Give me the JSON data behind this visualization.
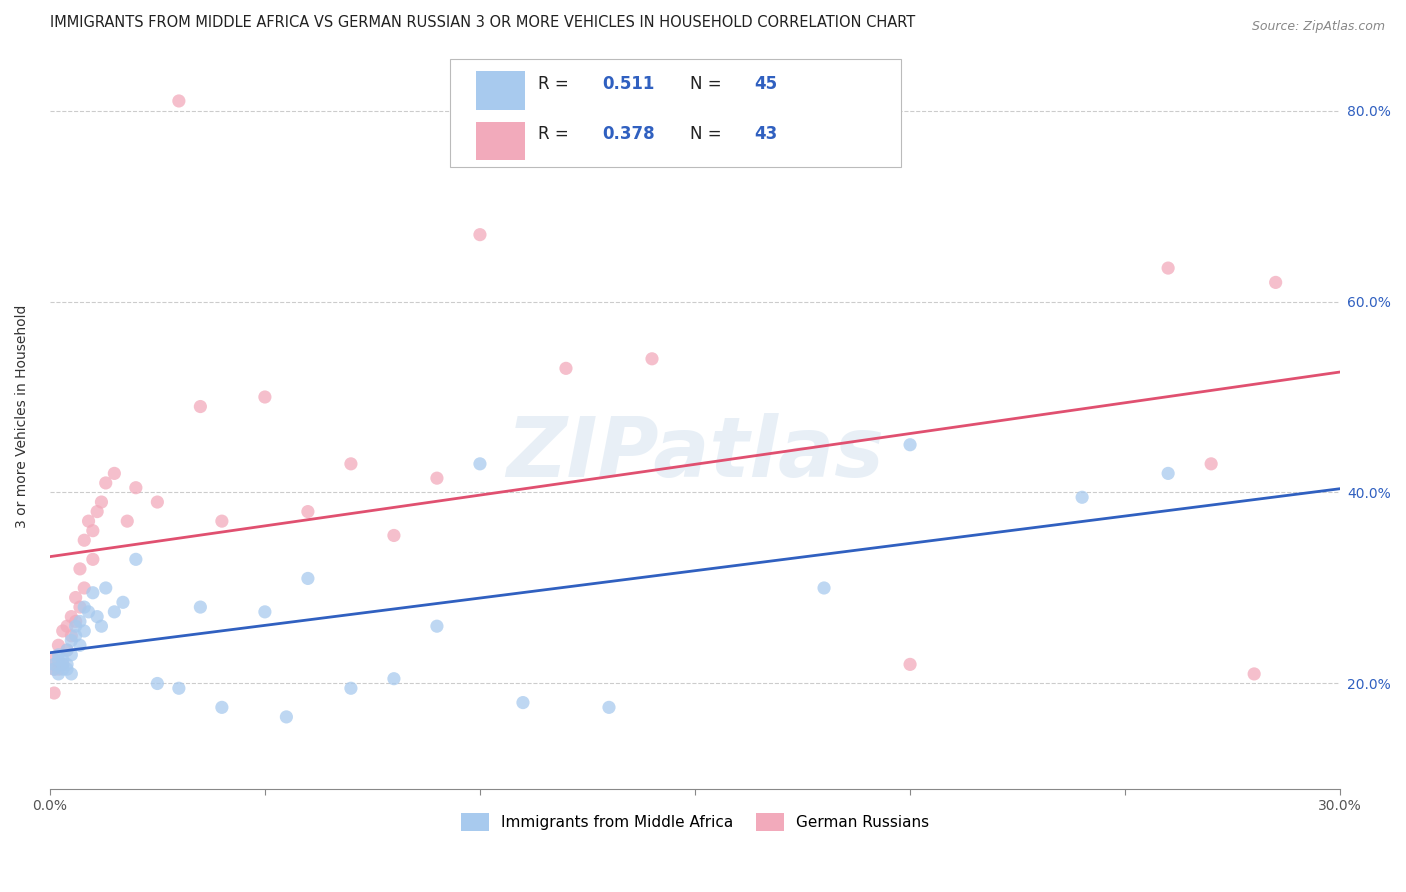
{
  "title": "IMMIGRANTS FROM MIDDLE AFRICA VS GERMAN RUSSIAN 3 OR MORE VEHICLES IN HOUSEHOLD CORRELATION CHART",
  "source": "Source: ZipAtlas.com",
  "ylabel": "3 or more Vehicles in Household",
  "xlim": [
    0.0,
    0.3
  ],
  "ylim": [
    0.09,
    0.87
  ],
  "xticks": [
    0.0,
    0.05,
    0.1,
    0.15,
    0.2,
    0.25,
    0.3
  ],
  "xticklabels": [
    "0.0%",
    "",
    "",
    "",
    "",
    "",
    "30.0%"
  ],
  "yticks": [
    0.2,
    0.4,
    0.6,
    0.8
  ],
  "yticklabels": [
    "20.0%",
    "40.0%",
    "60.0%",
    "80.0%"
  ],
  "blue_label": "Immigrants from Middle Africa",
  "pink_label": "German Russians",
  "blue_R": 0.511,
  "blue_N": 45,
  "pink_R": 0.378,
  "pink_N": 43,
  "blue_color": "#A8CAEE",
  "pink_color": "#F2AABB",
  "blue_line_color": "#3060C0",
  "pink_line_color": "#E05070",
  "watermark": "ZIPatlas",
  "blue_x": [
    0.001,
    0.001,
    0.002,
    0.002,
    0.002,
    0.003,
    0.003,
    0.003,
    0.004,
    0.004,
    0.004,
    0.005,
    0.005,
    0.005,
    0.006,
    0.006,
    0.007,
    0.007,
    0.008,
    0.008,
    0.009,
    0.01,
    0.011,
    0.012,
    0.013,
    0.015,
    0.017,
    0.02,
    0.025,
    0.03,
    0.035,
    0.04,
    0.05,
    0.055,
    0.06,
    0.07,
    0.08,
    0.09,
    0.1,
    0.11,
    0.13,
    0.18,
    0.2,
    0.24,
    0.26
  ],
  "blue_y": [
    0.22,
    0.215,
    0.225,
    0.21,
    0.23,
    0.22,
    0.215,
    0.225,
    0.235,
    0.22,
    0.215,
    0.23,
    0.245,
    0.21,
    0.26,
    0.25,
    0.265,
    0.24,
    0.28,
    0.255,
    0.275,
    0.295,
    0.27,
    0.26,
    0.3,
    0.275,
    0.285,
    0.33,
    0.2,
    0.195,
    0.28,
    0.175,
    0.275,
    0.165,
    0.31,
    0.195,
    0.205,
    0.26,
    0.43,
    0.18,
    0.175,
    0.3,
    0.45,
    0.395,
    0.42
  ],
  "pink_x": [
    0.001,
    0.001,
    0.001,
    0.002,
    0.002,
    0.003,
    0.003,
    0.004,
    0.004,
    0.005,
    0.005,
    0.006,
    0.006,
    0.007,
    0.007,
    0.008,
    0.008,
    0.009,
    0.01,
    0.01,
    0.011,
    0.012,
    0.013,
    0.015,
    0.018,
    0.02,
    0.025,
    0.03,
    0.035,
    0.04,
    0.05,
    0.06,
    0.07,
    0.08,
    0.09,
    0.1,
    0.12,
    0.14,
    0.2,
    0.26,
    0.27,
    0.28,
    0.285
  ],
  "pink_y": [
    0.215,
    0.225,
    0.19,
    0.24,
    0.215,
    0.255,
    0.22,
    0.26,
    0.235,
    0.27,
    0.25,
    0.29,
    0.265,
    0.32,
    0.28,
    0.35,
    0.3,
    0.37,
    0.36,
    0.33,
    0.38,
    0.39,
    0.41,
    0.42,
    0.37,
    0.405,
    0.39,
    0.81,
    0.49,
    0.37,
    0.5,
    0.38,
    0.43,
    0.355,
    0.415,
    0.67,
    0.53,
    0.54,
    0.22,
    0.635,
    0.43,
    0.21,
    0.62
  ]
}
